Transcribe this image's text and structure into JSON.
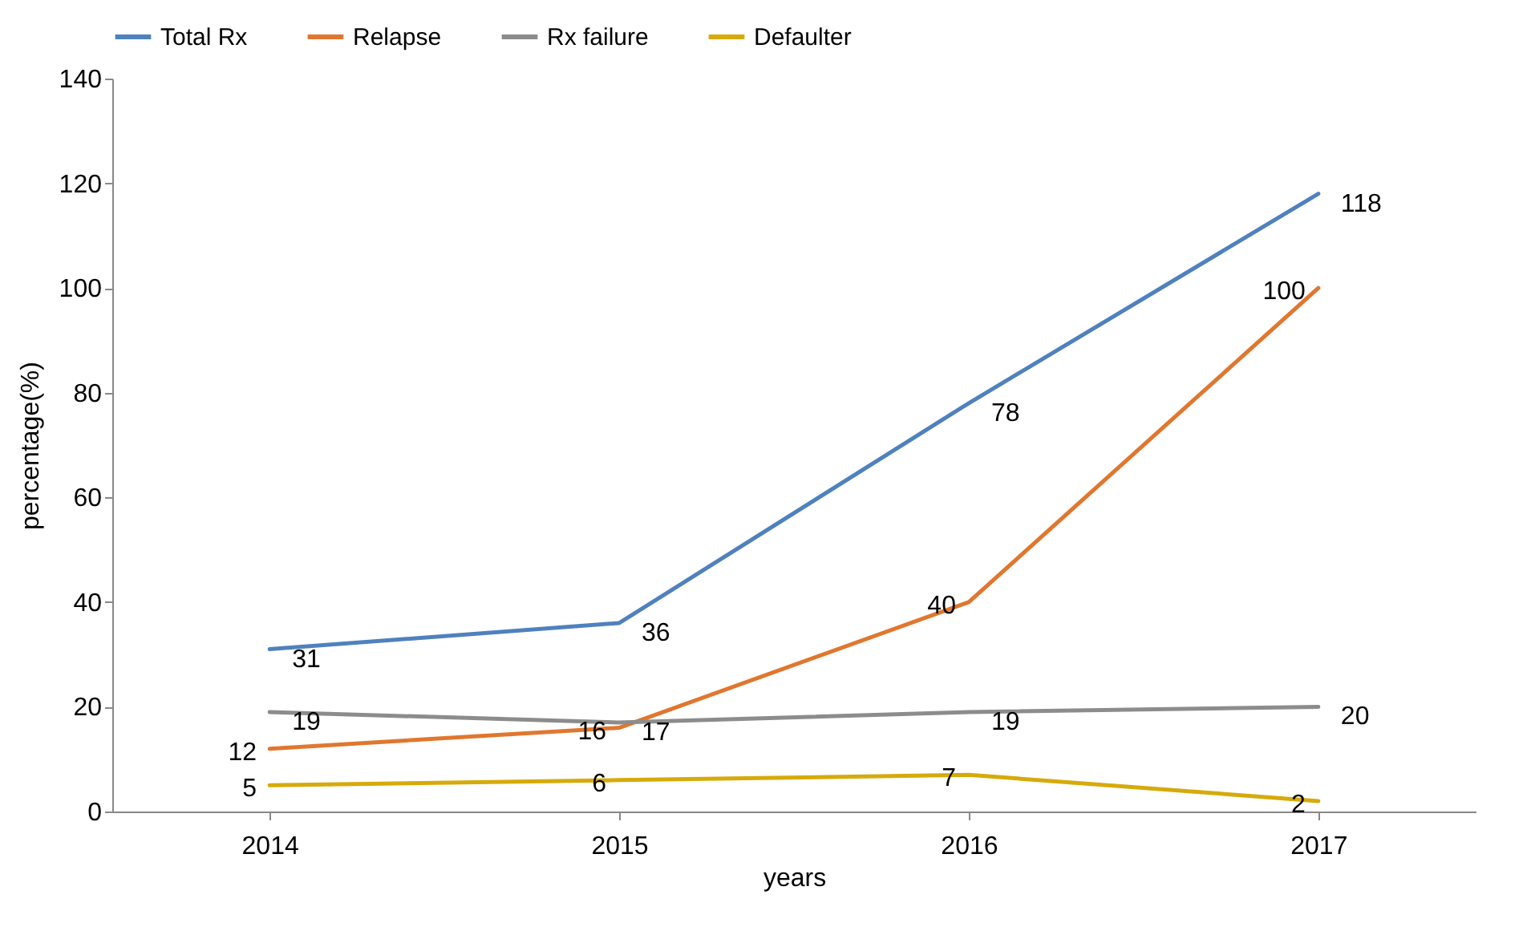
{
  "chart_data": {
    "type": "line",
    "xlabel": "years",
    "ylabel": "percentage(%)",
    "categories": [
      "2014",
      "2015",
      "2016",
      "2017"
    ],
    "series": [
      {
        "name": "Total Rx",
        "color": "#4f81bd",
        "values": [
          31,
          36,
          78,
          118
        ]
      },
      {
        "name": "Relapse",
        "color": "#e0772f",
        "values": [
          12,
          16,
          40,
          100
        ]
      },
      {
        "name": "Rx failure",
        "color": "#8c8c8c",
        "values": [
          19,
          17,
          19,
          20
        ]
      },
      {
        "name": "Defaulter",
        "color": "#d6aa0a",
        "values": [
          5,
          6,
          7,
          2
        ]
      }
    ],
    "ylim": [
      0,
      140
    ],
    "yticks": [
      0,
      20,
      40,
      60,
      80,
      100,
      120,
      140
    ],
    "grid": false,
    "legend": "top",
    "data_labels": true,
    "marker": "none"
  }
}
